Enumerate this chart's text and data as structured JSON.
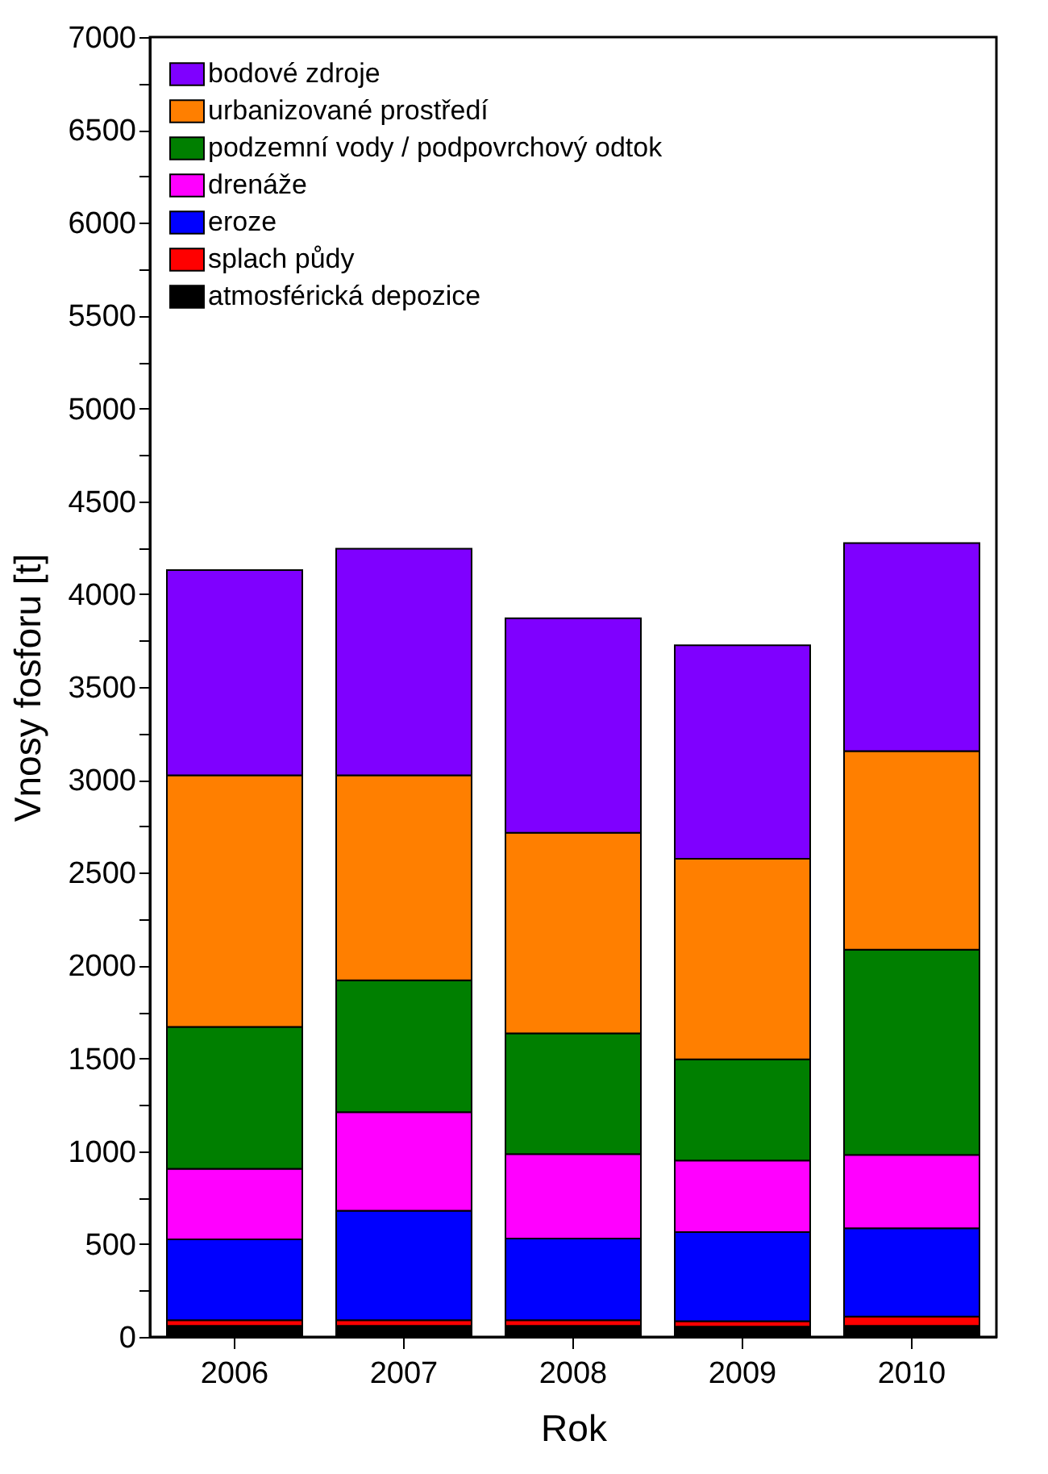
{
  "chart_data": {
    "type": "bar",
    "stacked": true,
    "xlabel": "Rok",
    "ylabel": "Vnosy fosforu [t]",
    "categories": [
      "2006",
      "2007",
      "2008",
      "2009",
      "2010"
    ],
    "series": [
      {
        "name": "atmosférická depozice",
        "color": "#000000",
        "values": [
          60,
          60,
          60,
          55,
          60
        ]
      },
      {
        "name": "splach půdy",
        "color": "#ff0000",
        "values": [
          30,
          30,
          30,
          30,
          50
        ]
      },
      {
        "name": "eroze",
        "color": "#0000ff",
        "values": [
          435,
          590,
          440,
          480,
          475
        ]
      },
      {
        "name": "drenáže",
        "color": "#ff00ff",
        "values": [
          380,
          530,
          455,
          385,
          395
        ]
      },
      {
        "name": "podzemní vody / podpovrchový odtok",
        "color": "#007f00",
        "values": [
          765,
          710,
          650,
          545,
          1105
        ]
      },
      {
        "name": "urbanizované prostředí",
        "color": "#ff7f00",
        "values": [
          1355,
          1105,
          1080,
          1080,
          1070
        ]
      },
      {
        "name": "bodové zdroje",
        "color": "#7f00ff",
        "values": [
          1105,
          1220,
          1155,
          1150,
          1120
        ]
      }
    ],
    "ylim": [
      0,
      7000
    ],
    "yticks": [
      0,
      {
        "value": 250,
        "label": null
      },
      500,
      {
        "value": 750,
        "label": null
      },
      1000,
      {
        "value": 1250,
        "label": null
      },
      1500,
      {
        "value": 1750,
        "label": null
      },
      2000,
      {
        "value": 2250,
        "label": null
      },
      2500,
      {
        "value": 2750,
        "label": null
      },
      3000,
      {
        "value": 3250,
        "label": null
      },
      3500,
      {
        "value": 3750,
        "label": null
      },
      4000,
      {
        "value": 4250,
        "label": null
      },
      4500,
      {
        "value": 4750,
        "label": null
      },
      5000,
      {
        "value": 5250,
        "label": null
      },
      5500,
      {
        "value": 5750,
        "label": null
      },
      6000,
      {
        "value": 6250,
        "label": null
      },
      6500,
      {
        "value": 6750,
        "label": null
      },
      7000
    ],
    "grid": false,
    "legend": "top left"
  }
}
